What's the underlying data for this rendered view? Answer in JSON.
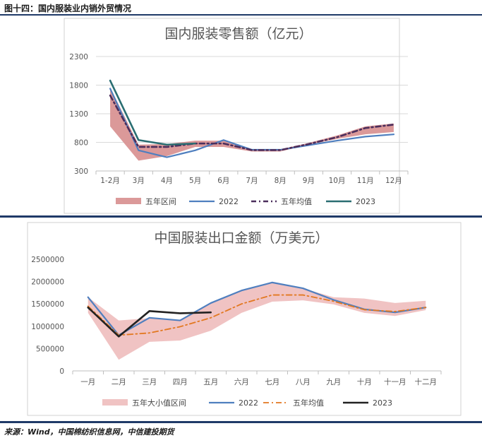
{
  "header": {
    "title": "图十四：国内服装业内销外贸情况"
  },
  "footer": {
    "source": "来源：Wind，中国棉纺织信息网，中信建投期货"
  },
  "colors": {
    "band": "#d99494",
    "band_light": "#eebdbd",
    "y2022": "#4f7fbf",
    "avg5": "#4b2e5c",
    "avg5_b": "#e27820",
    "y2023_a": "#2a6e72",
    "y2023_b": "#222222",
    "rule": "#1f3a68"
  },
  "chart_data": [
    {
      "type": "line",
      "title": "国内服装零售额（亿元）",
      "categories": [
        "1-2月",
        "3月",
        "4月",
        "5月",
        "6月",
        "7月",
        "8月",
        "9月",
        "10月",
        "11月",
        "12月"
      ],
      "ylim": [
        300,
        2300
      ],
      "yticks": [
        "300",
        "800",
        "1300",
        "1800",
        "2300"
      ],
      "grid": true,
      "legend_position": "bottom",
      "band": {
        "name": "五年区间",
        "low": [
          1080,
          480,
          560,
          720,
          720,
          640,
          640,
          760,
          860,
          940,
          980
        ],
        "high": [
          1760,
          760,
          770,
          830,
          830,
          680,
          680,
          790,
          920,
          1080,
          1130
        ]
      },
      "series": [
        {
          "name": "2022",
          "values": [
            1740,
            660,
            540,
            660,
            840,
            670,
            670,
            750,
            830,
            900,
            940
          ]
        },
        {
          "name": "五年均值",
          "values": [
            1620,
            720,
            720,
            780,
            780,
            665,
            665,
            770,
            890,
            1050,
            1110
          ]
        },
        {
          "name": "2023",
          "values": [
            1880,
            840,
            760,
            780,
            null,
            null,
            null,
            null,
            null,
            null,
            null
          ]
        }
      ]
    },
    {
      "type": "line",
      "title": "中国服装出口金额（万美元）",
      "categories": [
        "一月",
        "二月",
        "三月",
        "四月",
        "五月",
        "六月",
        "七月",
        "八月",
        "九月",
        "十月",
        "十一月",
        "十二月"
      ],
      "ylim": [
        0,
        2500000
      ],
      "yticks": [
        "0",
        "500000",
        "1000000",
        "1500000",
        "2000000",
        "2500000"
      ],
      "grid": false,
      "legend_position": "bottom",
      "band": {
        "name": "五年大小值区间",
        "low": [
          1300000,
          250000,
          650000,
          680000,
          900000,
          1300000,
          1550000,
          1580000,
          1490000,
          1300000,
          1230000,
          1360000
        ],
        "high": [
          1650000,
          1130000,
          1180000,
          1130000,
          1520000,
          1800000,
          1980000,
          1850000,
          1650000,
          1620000,
          1520000,
          1570000
        ]
      },
      "series": [
        {
          "name": "2022",
          "values": [
            1650000,
            800000,
            1190000,
            1130000,
            1520000,
            1800000,
            1980000,
            1850000,
            1590000,
            1380000,
            1310000,
            1420000
          ]
        },
        {
          "name": "五年均值",
          "values": [
            1450000,
            800000,
            850000,
            990000,
            1190000,
            1500000,
            1700000,
            1700000,
            1560000,
            1370000,
            1330000,
            1420000
          ]
        },
        {
          "name": "2023",
          "values": [
            1420000,
            770000,
            1340000,
            1290000,
            1310000,
            null,
            null,
            null,
            null,
            null,
            null,
            null
          ]
        }
      ]
    }
  ]
}
